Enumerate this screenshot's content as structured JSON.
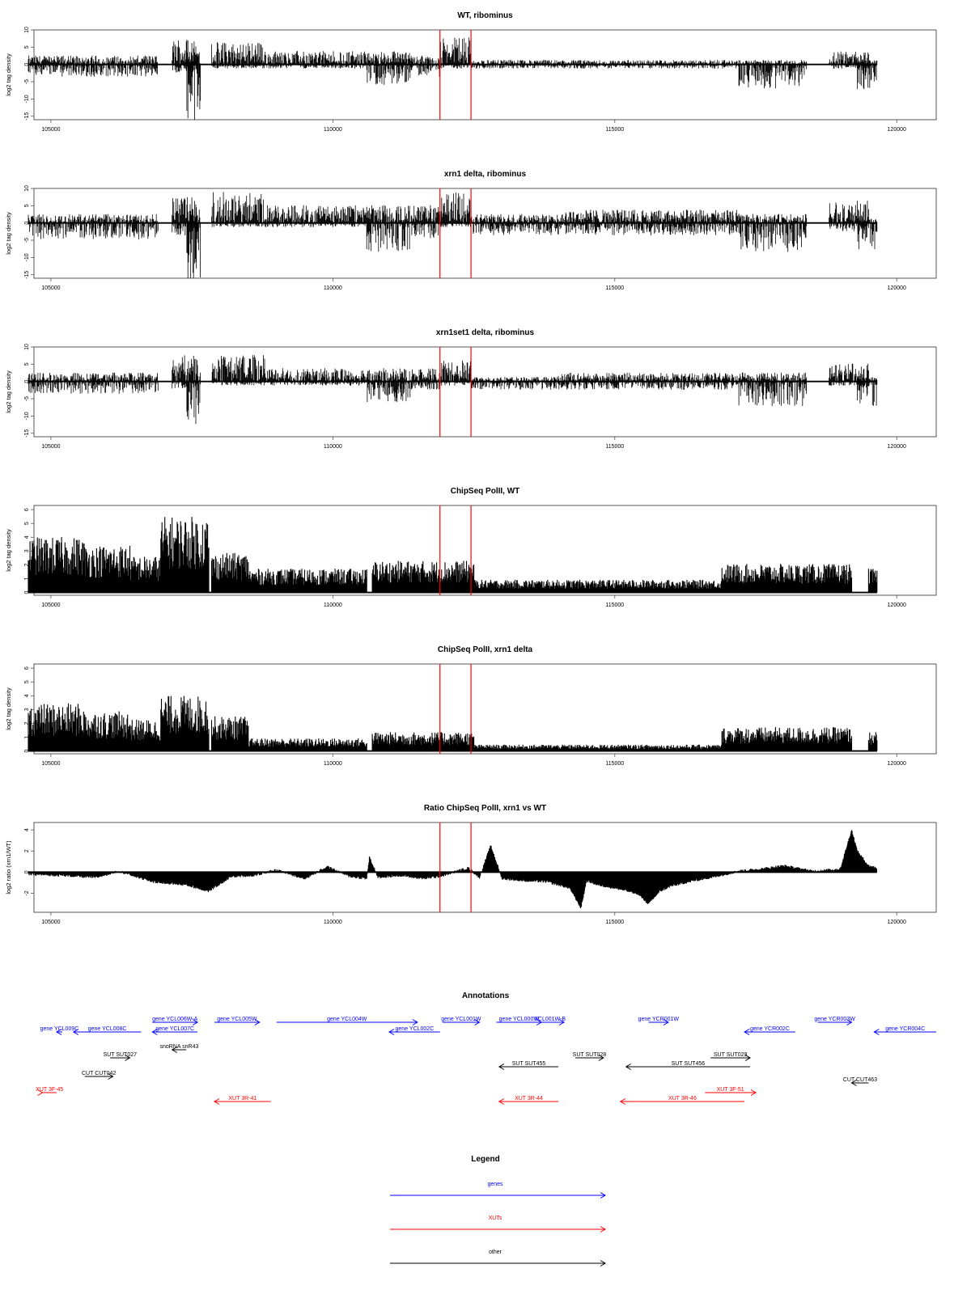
{
  "colors": {
    "genes": "#0000ff",
    "XUTs": "#ff0000",
    "other": "#000000",
    "highlight": "#ff0000",
    "data": "#000000",
    "axis": "#555555"
  },
  "chart_data": [
    {
      "type": "area",
      "title": "WT, ribominus",
      "ylabel": "log2 tag density",
      "xlim": [
        104700,
        120700
      ],
      "ylim": [
        -16,
        10
      ],
      "xticks": [
        105000,
        110000,
        115000,
        120000
      ],
      "yticks": [
        10,
        5,
        0,
        -5,
        -10,
        -15
      ],
      "highlight_x": [
        111900,
        112450
      ],
      "segments": [
        {
          "x": [
            104600,
            106900
          ],
          "up": 2,
          "down": -3
        },
        {
          "x": [
            107150,
            107600
          ],
          "up": 6,
          "down": -2
        },
        {
          "x": [
            107400,
            107650
          ],
          "up": 3,
          "down": -15
        },
        {
          "x": [
            107850,
            108800
          ],
          "up": 5,
          "down": -1
        },
        {
          "x": [
            108800,
            110600
          ],
          "up": 3,
          "down": -1
        },
        {
          "x": [
            110600,
            111400
          ],
          "up": 3,
          "down": -5
        },
        {
          "x": [
            111400,
            111900
          ],
          "up": 2,
          "down": -3
        },
        {
          "x": [
            111900,
            112450
          ],
          "up": 6,
          "down": -1
        },
        {
          "x": [
            112450,
            114000
          ],
          "up": 1,
          "down": -1
        },
        {
          "x": [
            114000,
            117200
          ],
          "up": 1,
          "down": -1
        },
        {
          "x": [
            117200,
            118400
          ],
          "up": 1,
          "down": -6
        },
        {
          "x": [
            118800,
            119500
          ],
          "up": 3,
          "down": -1
        },
        {
          "x": [
            119300,
            119650
          ],
          "up": 1,
          "down": -6
        }
      ]
    },
    {
      "type": "area",
      "title": "xrn1 delta, ribominus",
      "ylabel": "log2 tag density",
      "xlim": [
        104700,
        120700
      ],
      "ylim": [
        -16,
        10
      ],
      "xticks": [
        105000,
        110000,
        115000,
        120000
      ],
      "yticks": [
        10,
        5,
        0,
        -5,
        -10,
        -15
      ],
      "highlight_x": [
        111900,
        112450
      ],
      "segments": [
        {
          "x": [
            104600,
            106900
          ],
          "up": 2,
          "down": -4
        },
        {
          "x": [
            107150,
            107600
          ],
          "up": 6,
          "down": -3
        },
        {
          "x": [
            107400,
            107650
          ],
          "up": 3,
          "down": -15
        },
        {
          "x": [
            107850,
            108800
          ],
          "up": 7,
          "down": -1
        },
        {
          "x": [
            108800,
            110600
          ],
          "up": 4,
          "down": -1
        },
        {
          "x": [
            110600,
            111400
          ],
          "up": 4,
          "down": -7
        },
        {
          "x": [
            111400,
            111900
          ],
          "up": 4,
          "down": -4
        },
        {
          "x": [
            111900,
            112450
          ],
          "up": 7,
          "down": -1
        },
        {
          "x": [
            112450,
            114000
          ],
          "up": 2,
          "down": -3
        },
        {
          "x": [
            114000,
            117200
          ],
          "up": 3,
          "down": -3
        },
        {
          "x": [
            117200,
            118400
          ],
          "up": 2,
          "down": -7
        },
        {
          "x": [
            118800,
            119500
          ],
          "up": 5,
          "down": -2
        },
        {
          "x": [
            119300,
            119650
          ],
          "up": 1,
          "down": -7
        }
      ]
    },
    {
      "type": "area",
      "title": "xrn1set1 delta, ribominus",
      "ylabel": "log2 tag density",
      "xlim": [
        104700,
        120700
      ],
      "ylim": [
        -16,
        10
      ],
      "xticks": [
        105000,
        110000,
        115000,
        120000
      ],
      "yticks": [
        10,
        5,
        0,
        -5,
        -10,
        -15
      ],
      "highlight_x": [
        111900,
        112450
      ],
      "segments": [
        {
          "x": [
            104600,
            106900
          ],
          "up": 2,
          "down": -3
        },
        {
          "x": [
            107150,
            107600
          ],
          "up": 6,
          "down": -2
        },
        {
          "x": [
            107400,
            107650
          ],
          "up": 3,
          "down": -11
        },
        {
          "x": [
            107850,
            108800
          ],
          "up": 6,
          "down": -1
        },
        {
          "x": [
            108800,
            110600
          ],
          "up": 3,
          "down": -1
        },
        {
          "x": [
            110600,
            111400
          ],
          "up": 3,
          "down": -5
        },
        {
          "x": [
            111400,
            111900
          ],
          "up": 3,
          "down": -2
        },
        {
          "x": [
            111900,
            112450
          ],
          "up": 5,
          "down": -1
        },
        {
          "x": [
            112450,
            114000
          ],
          "up": 1,
          "down": -2
        },
        {
          "x": [
            114000,
            117200
          ],
          "up": 2,
          "down": -2
        },
        {
          "x": [
            117200,
            118400
          ],
          "up": 2,
          "down": -6
        },
        {
          "x": [
            118800,
            119500
          ],
          "up": 4,
          "down": -1
        },
        {
          "x": [
            119300,
            119650
          ],
          "up": 1,
          "down": -6
        }
      ]
    },
    {
      "type": "bar",
      "title": "ChipSeq PolII, WT",
      "ylabel": "log2 tag density",
      "xlim": [
        104700,
        120700
      ],
      "ylim": [
        -0.2,
        6.3
      ],
      "xticks": [
        105000,
        110000,
        115000,
        120000
      ],
      "yticks": [
        0,
        1,
        2,
        3,
        4,
        5,
        6
      ],
      "highlight_x": [
        111900,
        112450
      ],
      "segments": [
        {
          "x": [
            104600,
            105600
          ],
          "up": 3.5
        },
        {
          "x": [
            105600,
            106400
          ],
          "up": 3.0
        },
        {
          "x": [
            106400,
            106950
          ],
          "up": 2.3
        },
        {
          "x": [
            106950,
            107800
          ],
          "up": 4.8
        },
        {
          "x": [
            107850,
            108500
          ],
          "up": 2.5
        },
        {
          "x": [
            108500,
            110600
          ],
          "up": 1.5
        },
        {
          "x": [
            110700,
            112500
          ],
          "up": 2.0
        },
        {
          "x": [
            112500,
            116900
          ],
          "up": 0.8
        },
        {
          "x": [
            116900,
            119200
          ],
          "up": 1.8
        },
        {
          "x": [
            119500,
            119650
          ],
          "up": 1.5
        }
      ]
    },
    {
      "type": "bar",
      "title": "ChipSeq PolII, xrn1 delta",
      "ylabel": "log2 tag density",
      "xlim": [
        104700,
        120700
      ],
      "ylim": [
        -0.2,
        6.3
      ],
      "xticks": [
        105000,
        110000,
        115000,
        120000
      ],
      "yticks": [
        0,
        1,
        2,
        3,
        4,
        5,
        6
      ],
      "highlight_x": [
        111900,
        112450
      ],
      "segments": [
        {
          "x": [
            104600,
            105600
          ],
          "up": 3.0
        },
        {
          "x": [
            105600,
            106400
          ],
          "up": 2.5
        },
        {
          "x": [
            106400,
            106950
          ],
          "up": 2.0
        },
        {
          "x": [
            106950,
            107800
          ],
          "up": 3.5
        },
        {
          "x": [
            107850,
            108500
          ],
          "up": 2.2
        },
        {
          "x": [
            108500,
            110600
          ],
          "up": 0.8
        },
        {
          "x": [
            110700,
            112500
          ],
          "up": 1.2
        },
        {
          "x": [
            112500,
            116900
          ],
          "up": 0.4
        },
        {
          "x": [
            116900,
            119200
          ],
          "up": 1.5
        },
        {
          "x": [
            119500,
            119650
          ],
          "up": 1.2
        }
      ]
    },
    {
      "type": "area",
      "title": "Ratio ChipSeq PolII, xrn1 vs WT",
      "ylabel": "log2 ratio (xrn1/WT)",
      "xlim": [
        104700,
        120700
      ],
      "ylim": [
        -3.8,
        4.7
      ],
      "xticks": [
        105000,
        110000,
        115000,
        120000
      ],
      "yticks": [
        -2,
        0,
        2,
        4
      ],
      "highlight_x": [
        111900,
        112450
      ],
      "x": [
        104600,
        105200,
        105800,
        106200,
        106800,
        107400,
        107800,
        108200,
        108600,
        109000,
        109500,
        109900,
        110300,
        110600,
        110650,
        110800,
        111200,
        111600,
        111900,
        112400,
        112600,
        112800,
        113000,
        113400,
        113800,
        114200,
        114400,
        114500,
        114700,
        115000,
        115400,
        115600,
        115800,
        116000,
        116400,
        116800,
        117200,
        117600,
        118000,
        118500,
        118800,
        119000,
        119200,
        119300,
        119500,
        119650
      ],
      "values": [
        -0.2,
        -0.3,
        -0.5,
        0.1,
        -0.9,
        -1.2,
        -1.8,
        -0.4,
        -0.3,
        0.2,
        -0.6,
        0.5,
        -0.4,
        -0.6,
        1.4,
        -0.5,
        -0.3,
        -0.6,
        -0.4,
        0.4,
        -0.5,
        2.5,
        -0.6,
        -0.8,
        -0.9,
        -1.5,
        -3.4,
        -0.8,
        -1.2,
        -1.5,
        -2.0,
        -3.0,
        -1.8,
        -1.3,
        -0.8,
        -0.4,
        0.1,
        0.3,
        0.6,
        0.1,
        0.2,
        0.3,
        4.0,
        2.0,
        0.6,
        0.4
      ]
    }
  ],
  "annotations": {
    "title": "Annotations",
    "xlim": [
      104700,
      120700
    ],
    "items": [
      {
        "label": "gene YCL009C",
        "x1": 104000,
        "x2": 105200,
        "dir": "left",
        "row": 3,
        "color": "#0000ff"
      },
      {
        "label": "gene YCL008C",
        "x1": 105400,
        "x2": 106600,
        "dir": "left",
        "row": 3,
        "color": "#0000ff"
      },
      {
        "label": "gene YCL006W-A",
        "x1": 106800,
        "x2": 107600,
        "dir": "right",
        "row": 2,
        "color": "#0000ff"
      },
      {
        "label": "gene YCL007C",
        "x1": 106800,
        "x2": 107600,
        "dir": "left",
        "row": 3,
        "color": "#0000ff"
      },
      {
        "label": "gene YCL005W",
        "x1": 107900,
        "x2": 108700,
        "dir": "right",
        "row": 2,
        "color": "#0000ff"
      },
      {
        "label": "gene YCL004W",
        "x1": 109000,
        "x2": 111500,
        "dir": "right",
        "row": 2,
        "color": "#0000ff"
      },
      {
        "label": "gene YCL002C",
        "x1": 111000,
        "x2": 111900,
        "dir": "left",
        "row": 3,
        "color": "#0000ff"
      },
      {
        "label": "gene YCL001W",
        "x1": 111950,
        "x2": 112600,
        "dir": "right",
        "row": 2,
        "color": "#0000ff"
      },
      {
        "label": "gene YCL000W",
        "x1": 112900,
        "x2": 113700,
        "dir": "right",
        "row": 2,
        "color": "#0000ff"
      },
      {
        "label": "YCL001W-B",
        "x1": 113600,
        "x2": 114100,
        "dir": "right",
        "row": 2,
        "color": "#0000ff"
      },
      {
        "label": "gene YCR001W",
        "x1": 115600,
        "x2": 115950,
        "dir": "right",
        "row": 2,
        "color": "#0000ff"
      },
      {
        "label": "gene YCR002C",
        "x1": 117300,
        "x2": 118200,
        "dir": "left",
        "row": 3,
        "color": "#0000ff"
      },
      {
        "label": "gene YCR003W",
        "x1": 118600,
        "x2": 119200,
        "dir": "right",
        "row": 2,
        "color": "#0000ff"
      },
      {
        "label": "gene YCR004C",
        "x1": 119600,
        "x2": 120700,
        "dir": "left",
        "row": 3,
        "color": "#0000ff"
      },
      {
        "label": "snoRNA snR43",
        "x1": 107150,
        "x2": 107400,
        "dir": "left",
        "row": 4,
        "color": "#000000"
      },
      {
        "label": "SUT SUT027",
        "x1": 106050,
        "x2": 106400,
        "dir": "right",
        "row": 5,
        "color": "#000000"
      },
      {
        "label": "SUT SUT455",
        "x1": 112950,
        "x2": 114000,
        "dir": "left",
        "row": 6,
        "color": "#000000"
      },
      {
        "label": "SUT SUT028",
        "x1": 114300,
        "x2": 114800,
        "dir": "right",
        "row": 5,
        "color": "#000000"
      },
      {
        "label": "SUT SUT029",
        "x1": 116700,
        "x2": 117400,
        "dir": "right",
        "row": 5,
        "color": "#000000"
      },
      {
        "label": "SUT SUT456",
        "x1": 115200,
        "x2": 117400,
        "dir": "left",
        "row": 6,
        "color": "#000000"
      },
      {
        "label": "CUT CUT042",
        "x1": 105600,
        "x2": 106100,
        "dir": "right",
        "row": 7,
        "color": "#000000"
      },
      {
        "label": "CUT CUT463",
        "x1": 119200,
        "x2": 119500,
        "dir": "left",
        "row": 8,
        "color": "#000000"
      },
      {
        "label": "XUT 3F-45",
        "x1": 104300,
        "x2": 104850,
        "dir": "right",
        "row": 9,
        "color": "#ff0000"
      },
      {
        "label": "XUT 3R-41",
        "x1": 107900,
        "x2": 108900,
        "dir": "left",
        "row": 10,
        "color": "#ff0000"
      },
      {
        "label": "XUT 3R-44",
        "x1": 112950,
        "x2": 114000,
        "dir": "left",
        "row": 10,
        "color": "#ff0000"
      },
      {
        "label": "XUT 3F-51",
        "x1": 116600,
        "x2": 117500,
        "dir": "right",
        "row": 9,
        "color": "#ff0000"
      },
      {
        "label": "XUT 3R-46",
        "x1": 115100,
        "x2": 117300,
        "dir": "left",
        "row": 10,
        "color": "#ff0000"
      }
    ]
  },
  "legend": {
    "title": "Legend",
    "items": [
      {
        "label": "genes",
        "color": "#0000ff"
      },
      {
        "label": "XUTs",
        "color": "#ff0000"
      },
      {
        "label": "other",
        "color": "#000000"
      }
    ]
  }
}
